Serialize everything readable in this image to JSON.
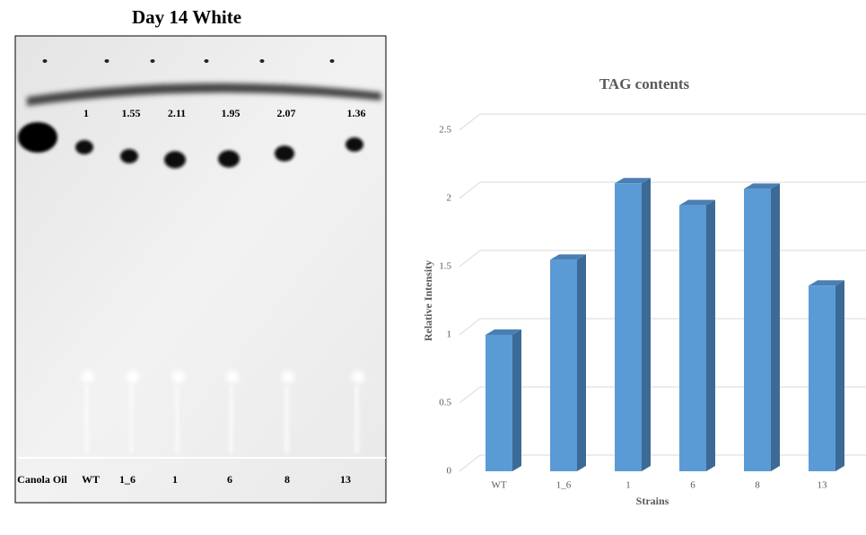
{
  "gel": {
    "title": "Day 14 White",
    "intensity_labels": [
      "1",
      "1.55",
      "2.11",
      "1.95",
      "2.07",
      "1.36"
    ],
    "lane_labels": [
      "Canola Oil",
      "WT",
      "1_6",
      "1",
      "6",
      "8",
      "13"
    ]
  },
  "chart_data": {
    "type": "bar",
    "title": "TAG contents",
    "x_label": "Strains",
    "y_label": "Relative Intensity",
    "categories": [
      "WT",
      "1_6",
      "1",
      "6",
      "8",
      "13"
    ],
    "values": [
      1,
      1.55,
      2.11,
      1.95,
      2.07,
      1.36
    ],
    "color": "#5b9bd5",
    "ylim": [
      0,
      2.5
    ],
    "yticks": [
      0,
      0.5,
      1,
      1.5,
      2,
      2.5
    ],
    "grid": true
  }
}
